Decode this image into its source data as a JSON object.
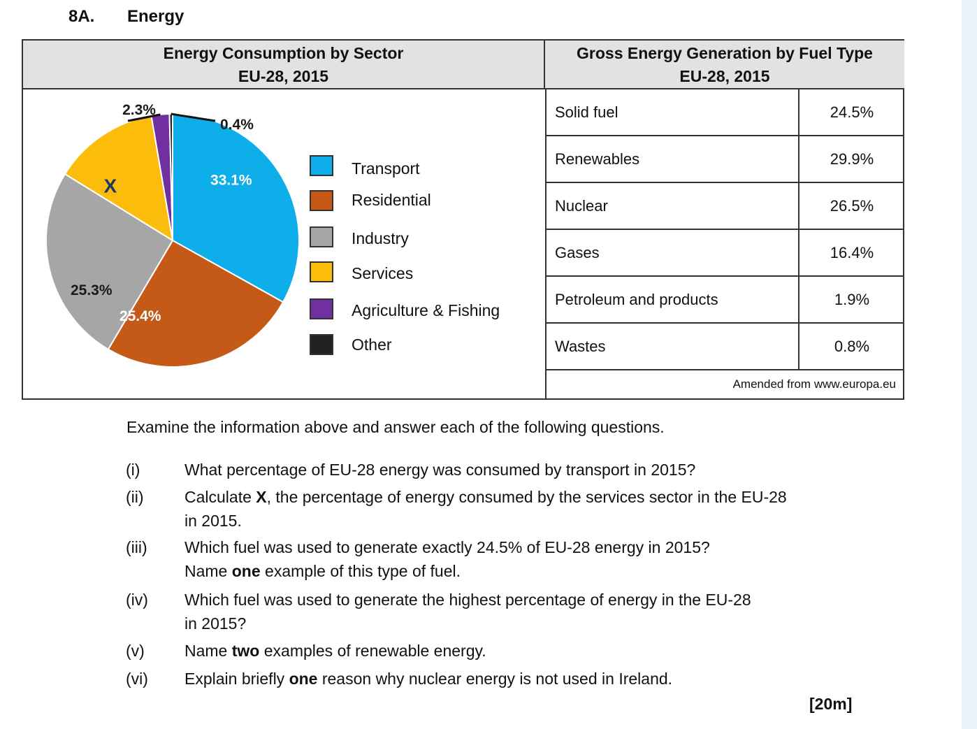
{
  "question": {
    "number": "8A.",
    "title": "Energy"
  },
  "pie_panel": {
    "title_line1": "Energy Consumption by Sector",
    "title_line2": "EU-28, 2015",
    "x_marker": "X"
  },
  "chart_data": {
    "type": "pie",
    "title": "Energy Consumption by Sector EU-28, 2015",
    "slices": [
      {
        "name": "Transport",
        "value": 33.1,
        "label": "33.1%",
        "color": "#0daeea"
      },
      {
        "name": "Residential",
        "value": 25.4,
        "label": "25.4%",
        "color": "#c55a18"
      },
      {
        "name": "Industry",
        "value": 25.3,
        "label": "25.3%",
        "color": "#a6a6a6"
      },
      {
        "name": "Services",
        "value": 13.5,
        "label": "X",
        "color": "#fbbc0b"
      },
      {
        "name": "Agriculture & Fishing",
        "value": 2.3,
        "label": "2.3%",
        "color": "#7030a0"
      },
      {
        "name": "Other",
        "value": 0.4,
        "label": "0.4%",
        "color": "#222222"
      }
    ],
    "legend_placement": "right"
  },
  "legend": [
    {
      "label": "Transport",
      "color": "#0daeea"
    },
    {
      "label": "Residential",
      "color": "#c55a18"
    },
    {
      "label": "Industry",
      "color": "#a6a6a6"
    },
    {
      "label": "Services",
      "color": "#fbbc0b"
    },
    {
      "label": "Agriculture & Fishing",
      "color": "#7030a0"
    },
    {
      "label": "Other",
      "color": "#222222"
    }
  ],
  "table": {
    "title_line1": "Gross Energy Generation by Fuel Type",
    "title_line2": "EU-28, 2015",
    "rows": [
      {
        "fuel": "Solid fuel",
        "value": "24.5%"
      },
      {
        "fuel": "Renewables",
        "value": "29.9%"
      },
      {
        "fuel": "Nuclear",
        "value": "26.5%"
      },
      {
        "fuel": "Gases",
        "value": "16.4%"
      },
      {
        "fuel": "Petroleum and products",
        "value": "1.9%"
      },
      {
        "fuel": "Wastes",
        "value": "0.8%"
      }
    ],
    "source": "Amended from www.europa.eu"
  },
  "instructions": "Examine the information above and answer each of the following questions.",
  "questions": [
    {
      "num": "(i)",
      "parts": [
        {
          "t": "What percentage of EU-28 energy was consumed by transport in 2015?"
        }
      ]
    },
    {
      "num": "(ii)",
      "parts": [
        {
          "t": "Calculate "
        },
        {
          "t": "X",
          "b": true
        },
        {
          "t": ", the percentage of energy consumed by the services sector in the EU-28"
        },
        {
          "br": true
        },
        {
          "t": "in 2015."
        }
      ]
    },
    {
      "num": "(iii)",
      "parts": [
        {
          "t": "Which fuel was used to generate exactly 24.5% of EU-28 energy in 2015?"
        },
        {
          "br": true
        },
        {
          "t": "Name "
        },
        {
          "t": "one",
          "b": true
        },
        {
          "t": " example of this type of fuel."
        }
      ]
    },
    {
      "num": "(iv)",
      "parts": [
        {
          "t": "Which fuel was used to generate the highest percentage of energy in the EU-28"
        },
        {
          "br": true
        },
        {
          "t": "in 2015?"
        }
      ]
    },
    {
      "num": "(v)",
      "parts": [
        {
          "t": "Name "
        },
        {
          "t": "two",
          "b": true
        },
        {
          "t": " examples of renewable energy."
        }
      ]
    },
    {
      "num": "(vi)",
      "parts": [
        {
          "t": "Explain briefly "
        },
        {
          "t": "one",
          "b": true
        },
        {
          "t": " reason why nuclear energy is not used in Ireland."
        }
      ]
    }
  ],
  "marks": "[20m]"
}
